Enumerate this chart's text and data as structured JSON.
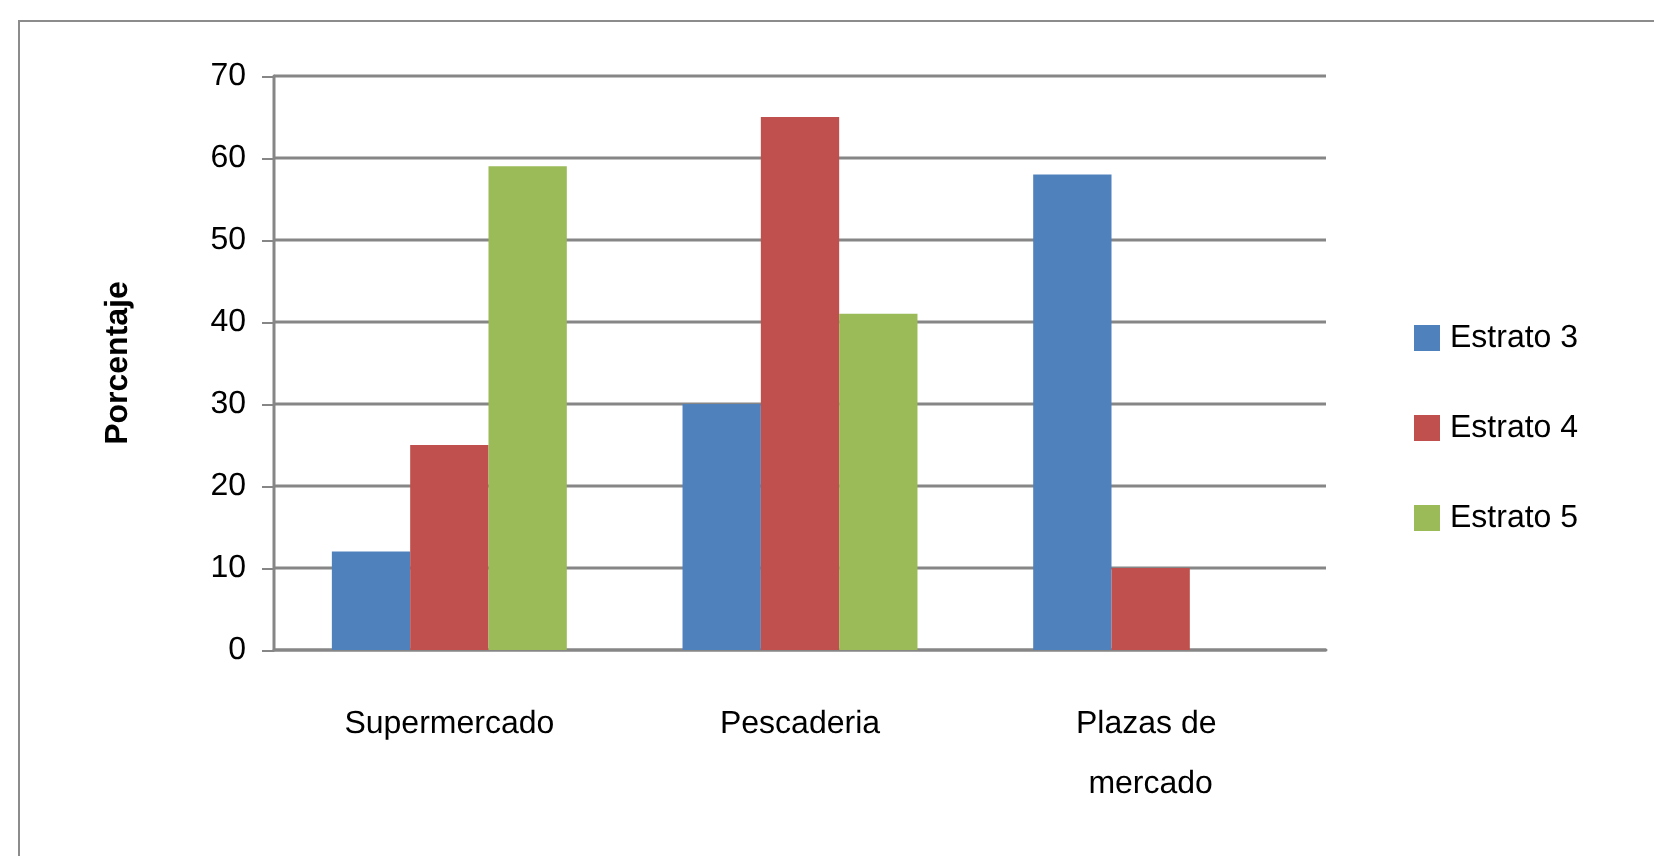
{
  "chart_data": {
    "type": "bar",
    "ylabel": "Porcentaje",
    "categories": [
      "Supermercado",
      "Pescaderia",
      "Plazas de mercado"
    ],
    "series": [
      {
        "name": "Estrato 3",
        "color": "#4f81bd",
        "values": [
          12,
          30,
          58
        ]
      },
      {
        "name": "Estrato 4",
        "color": "#c0504d",
        "values": [
          25,
          65,
          10
        ]
      },
      {
        "name": "Estrato 5",
        "color": "#9bbb59",
        "values": [
          59,
          41,
          null
        ]
      }
    ],
    "ylim": [
      0,
      70
    ],
    "yticks": [
      0,
      10,
      20,
      30,
      40,
      50,
      60,
      70
    ],
    "grid": "y",
    "legend": "right"
  }
}
